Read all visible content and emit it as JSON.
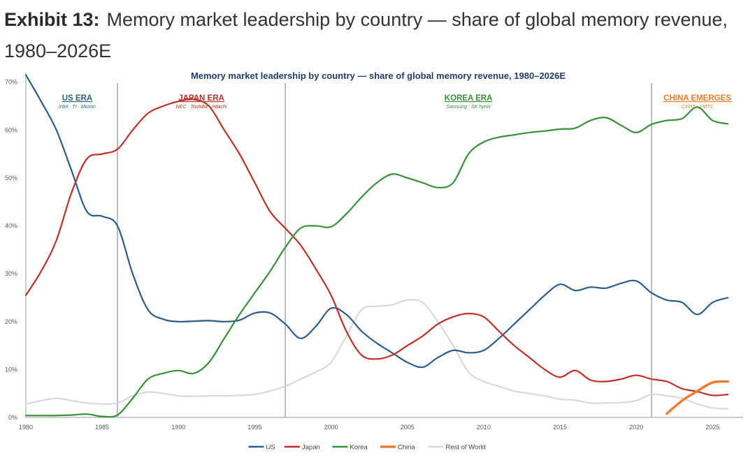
{
  "exhibit": {
    "label": "Exhibit 13:",
    "caption": "Memory market leadership by country — share of global memory revenue, 1980–2026E"
  },
  "chart_data": {
    "type": "line",
    "title": "Memory market leadership by country — share of global memory revenue, 1980–2026E",
    "xlabel": "",
    "ylabel": "",
    "xlim": [
      1980,
      2027
    ],
    "ylim": [
      0,
      72
    ],
    "x_ticks": [
      "1980",
      "1985",
      "1990",
      "1995",
      "2000",
      "2005",
      "2010",
      "2015",
      "2020",
      "2025"
    ],
    "y_ticks": [
      "0%",
      "10%",
      "20%",
      "30%",
      "40%",
      "50%",
      "60%",
      "70%"
    ],
    "grid": false,
    "legend_position": "bottom-center",
    "eras": [
      {
        "name": "US ERA",
        "companies": "Intel · TI · Micron",
        "start": 1980,
        "end": 1986,
        "color": "#2f5f8a"
      },
      {
        "name": "JAPAN ERA",
        "companies": "NEC · Toshiba · Hitachi",
        "start": 1986,
        "end": 1997,
        "color": "#c0302a"
      },
      {
        "name": "KOREA ERA",
        "companies": "Samsung · SK hynix",
        "start": 1997,
        "end": 2021,
        "color": "#3a8f3a"
      },
      {
        "name": "CHINA EMERGES",
        "companies": "CXMT · YMTC",
        "start": 2021,
        "end": 2027,
        "color": "#ee7d2f"
      }
    ],
    "era_dividers": [
      1986,
      1997,
      2021
    ],
    "series": [
      {
        "name": "US",
        "color": "#2e5d8a",
        "x": [
          1980,
          1981,
          1982,
          1983,
          1984,
          1985,
          1986,
          1987,
          1988,
          1989,
          1990,
          1991,
          1992,
          1993,
          1994,
          1995,
          1996,
          1997,
          1998,
          1999,
          2000,
          2001,
          2002,
          2003,
          2004,
          2005,
          2006,
          2007,
          2008,
          2009,
          2010,
          2011,
          2012,
          2013,
          2014,
          2015,
          2016,
          2017,
          2018,
          2019,
          2020,
          2021,
          2022,
          2023,
          2024,
          2025,
          2026
        ],
        "values": [
          71.5,
          66,
          60,
          51.5,
          43,
          42,
          40,
          30,
          22.5,
          20.5,
          20,
          20.1,
          20.2,
          20,
          20.3,
          21.8,
          21.8,
          19.5,
          16.5,
          19,
          22.8,
          21.5,
          18,
          15.5,
          13.5,
          11.5,
          10.5,
          12.5,
          14,
          13.5,
          14,
          16.5,
          19.5,
          22.5,
          25.5,
          27.8,
          26.5,
          27.2,
          27,
          28,
          28.5,
          26,
          24.5,
          24,
          21.5,
          24,
          25
        ]
      },
      {
        "name": "Japan",
        "color": "#c0302a",
        "x": [
          1980,
          1981,
          1982,
          1983,
          1984,
          1985,
          1986,
          1987,
          1988,
          1989,
          1990,
          1991,
          1992,
          1993,
          1994,
          1995,
          1996,
          1997,
          1998,
          1999,
          2000,
          2001,
          2002,
          2003,
          2004,
          2005,
          2006,
          2007,
          2008,
          2009,
          2010,
          2011,
          2012,
          2013,
          2014,
          2015,
          2016,
          2017,
          2018,
          2019,
          2020,
          2021,
          2022,
          2023,
          2024,
          2025,
          2026
        ],
        "values": [
          25.5,
          30.5,
          37,
          47,
          54,
          55,
          56,
          60,
          63.5,
          65,
          66,
          66.4,
          65,
          60,
          55,
          49,
          43,
          39.5,
          36,
          31,
          25.5,
          18,
          13,
          12.2,
          13,
          15,
          17,
          19.5,
          21,
          21.7,
          21,
          18,
          15,
          12.5,
          10,
          8.4,
          9.8,
          7.8,
          7.5,
          8,
          8.8,
          8,
          7.5,
          6,
          5.4,
          4.6,
          4.8
        ]
      },
      {
        "name": "Korea",
        "color": "#3a8f3a",
        "x": [
          1980,
          1981,
          1982,
          1983,
          1984,
          1985,
          1986,
          1987,
          1988,
          1989,
          1990,
          1991,
          1992,
          1993,
          1994,
          1995,
          1996,
          1997,
          1998,
          1999,
          2000,
          2001,
          2002,
          2003,
          2004,
          2005,
          2006,
          2007,
          2008,
          2009,
          2010,
          2011,
          2012,
          2013,
          2014,
          2015,
          2016,
          2017,
          2018,
          2019,
          2020,
          2021,
          2022,
          2023,
          2024,
          2025,
          2026
        ],
        "values": [
          0.4,
          0.4,
          0.4,
          0.5,
          0.7,
          0.2,
          0.5,
          4,
          8,
          9.2,
          9.8,
          9.2,
          11.5,
          16.5,
          21.5,
          26,
          30.5,
          35.5,
          39.5,
          40,
          39.8,
          42.5,
          46,
          49,
          50.8,
          50,
          49,
          48,
          49,
          55,
          57.5,
          58.5,
          59,
          59.5,
          59.8,
          60.2,
          60.4,
          62,
          62.6,
          61,
          59.5,
          61.2,
          62,
          62.4,
          64.8,
          62,
          61.3
        ]
      },
      {
        "name": "China",
        "color": "#ee7d2f",
        "x": [
          2022,
          2023,
          2024,
          2025,
          2026
        ],
        "values": [
          0.8,
          3.5,
          5.5,
          7.3,
          7.5
        ]
      },
      {
        "name": "Rest of World",
        "color": "#d9d9d9",
        "x": [
          1980,
          1981,
          1982,
          1983,
          1984,
          1985,
          1986,
          1987,
          1988,
          1989,
          1990,
          1991,
          1992,
          1993,
          1994,
          1995,
          1996,
          1997,
          1998,
          1999,
          2000,
          2001,
          2002,
          2003,
          2004,
          2005,
          2006,
          2007,
          2008,
          2009,
          2010,
          2011,
          2012,
          2013,
          2014,
          2015,
          2016,
          2017,
          2018,
          2019,
          2020,
          2021,
          2022,
          2023,
          2024,
          2025,
          2026
        ],
        "values": [
          2.8,
          3.5,
          4,
          3.5,
          3,
          2.8,
          3,
          4.5,
          5.3,
          5,
          4.5,
          4.4,
          4.5,
          4.5,
          4.6,
          4.8,
          5.5,
          6.5,
          8,
          9.5,
          11.5,
          17,
          22.5,
          23.2,
          23.5,
          24.5,
          24,
          20,
          15,
          9.5,
          7.5,
          6.5,
          5.5,
          5,
          4.5,
          3.8,
          3.6,
          3,
          3,
          3.1,
          3.5,
          4.8,
          4.5,
          4,
          2.8,
          2,
          1.8
        ]
      }
    ]
  }
}
